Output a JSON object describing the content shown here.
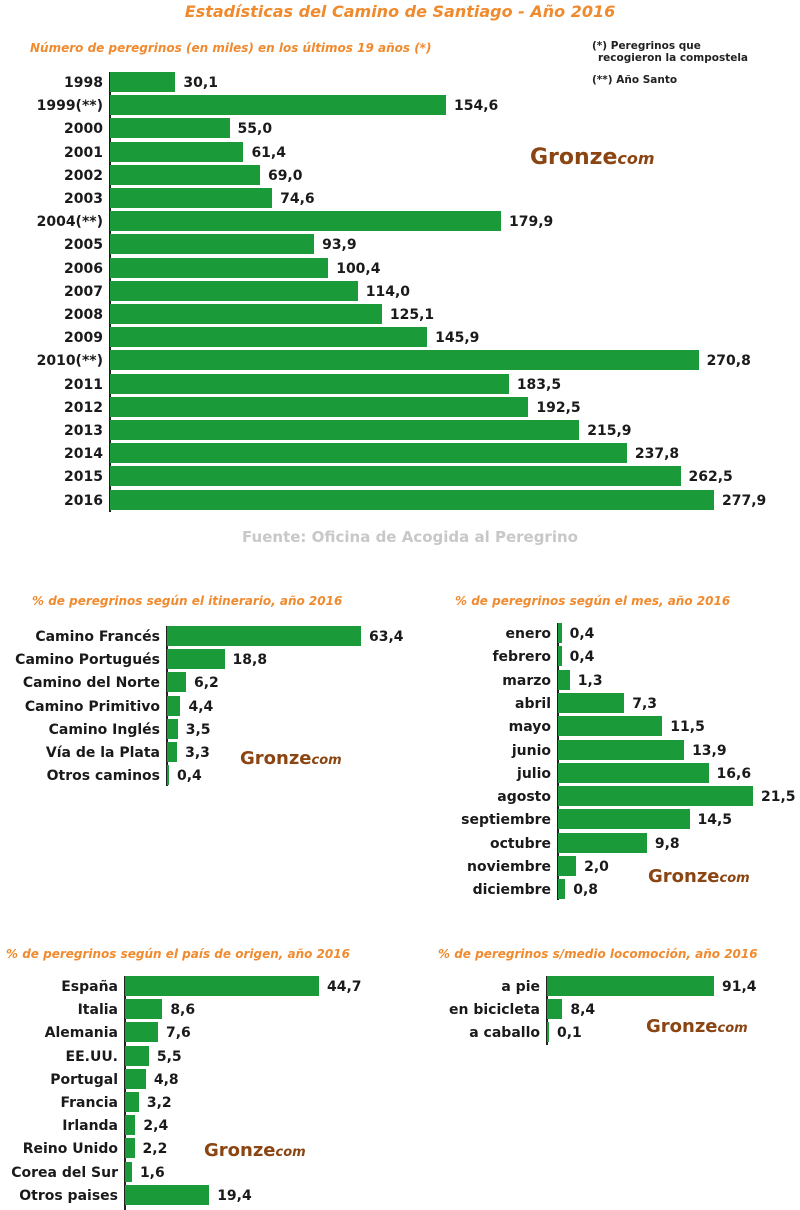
{
  "header": {
    "title": "Estadísticas del Camino de Santiago - Año 2016",
    "note_one": "(*)   Peregrinos que",
    "note_one_b": "recogieron la compostela",
    "note_two": "(**) Año Santo",
    "source": "Fuente: Oficina de Acogida al Peregrino"
  },
  "logo": {
    "name": "Gronze",
    "suffix": "com"
  },
  "colors": {
    "bar": "#1b9a3a",
    "title": "#f08a2e",
    "logo": "#8b4513"
  },
  "chart_data": [
    {
      "id": "years",
      "type": "bar",
      "orientation": "horizontal",
      "title": "Número de peregrinos (en miles) en los últimos 19 años (*)",
      "categories": [
        "1998",
        "1999(**)",
        "2000",
        "2001",
        "2002",
        "2003",
        "2004(**)",
        "2005",
        "2006",
        "2007",
        "2008",
        "2009",
        "2010(**)",
        "2011",
        "2012",
        "2013",
        "2014",
        "2015",
        "2016"
      ],
      "values": [
        30.1,
        154.6,
        55.0,
        61.4,
        69.0,
        74.6,
        179.9,
        93.9,
        100.4,
        114.0,
        125.1,
        145.9,
        270.8,
        183.5,
        192.5,
        215.9,
        237.8,
        262.5,
        277.9
      ],
      "value_labels": [
        "30,1",
        "154,6",
        "55,0",
        "61,4",
        "69,0",
        "74,6",
        "179,9",
        "93,9",
        "100,4",
        "114,0",
        "125,1",
        "145,9",
        "270,8",
        "183,5",
        "192,5",
        "215,9",
        "237,8",
        "262,5",
        "277,9"
      ]
    },
    {
      "id": "route",
      "type": "bar",
      "orientation": "horizontal",
      "title": "% de peregrinos según el itinerario, año 2016",
      "categories": [
        "Camino Francés",
        "Camino Portugués",
        "Camino del Norte",
        "Camino Primitivo",
        "Camino Inglés",
        "Vía de la Plata",
        "Otros caminos"
      ],
      "values": [
        63.4,
        18.8,
        6.2,
        4.4,
        3.5,
        3.3,
        0.4
      ],
      "value_labels": [
        "63,4",
        "18,8",
        "6,2",
        "4,4",
        "3,5",
        "3,3",
        "0,4"
      ]
    },
    {
      "id": "month",
      "type": "bar",
      "orientation": "horizontal",
      "title": "% de peregrinos según el mes, año 2016",
      "categories": [
        "enero",
        "febrero",
        "marzo",
        "abril",
        "mayo",
        "junio",
        "julio",
        "agosto",
        "septiembre",
        "octubre",
        "noviembre",
        "diciembre"
      ],
      "values": [
        0.4,
        0.4,
        1.3,
        7.3,
        11.5,
        13.9,
        16.6,
        21.5,
        14.5,
        9.8,
        2.0,
        0.8
      ],
      "value_labels": [
        "0,4",
        "0,4",
        "1,3",
        "7,3",
        "11,5",
        "13,9",
        "16,6",
        "21,5",
        "14,5",
        "9,8",
        "2,0",
        "0,8"
      ]
    },
    {
      "id": "country",
      "type": "bar",
      "orientation": "horizontal",
      "title": "% de peregrinos según el país de origen, año 2016",
      "categories": [
        "España",
        "Italia",
        "Alemania",
        "EE.UU.",
        "Portugal",
        "Francia",
        "Irlanda",
        "Reino Unido",
        "Corea del Sur",
        "Otros paises"
      ],
      "values": [
        44.7,
        8.6,
        7.6,
        5.5,
        4.8,
        3.2,
        2.4,
        2.2,
        1.6,
        19.4
      ],
      "value_labels": [
        "44,7",
        "8,6",
        "7,6",
        "5,5",
        "4,8",
        "3,2",
        "2,4",
        "2,2",
        "1,6",
        "19,4"
      ]
    },
    {
      "id": "transport",
      "type": "bar",
      "orientation": "horizontal",
      "title": "% de peregrinos s/medio locomoción, año 2016",
      "categories": [
        "a pie",
        "en bicicleta",
        "a caballo"
      ],
      "values": [
        91.4,
        8.4,
        0.1
      ],
      "value_labels": [
        "91,4",
        "8,4",
        "0,1"
      ]
    }
  ]
}
